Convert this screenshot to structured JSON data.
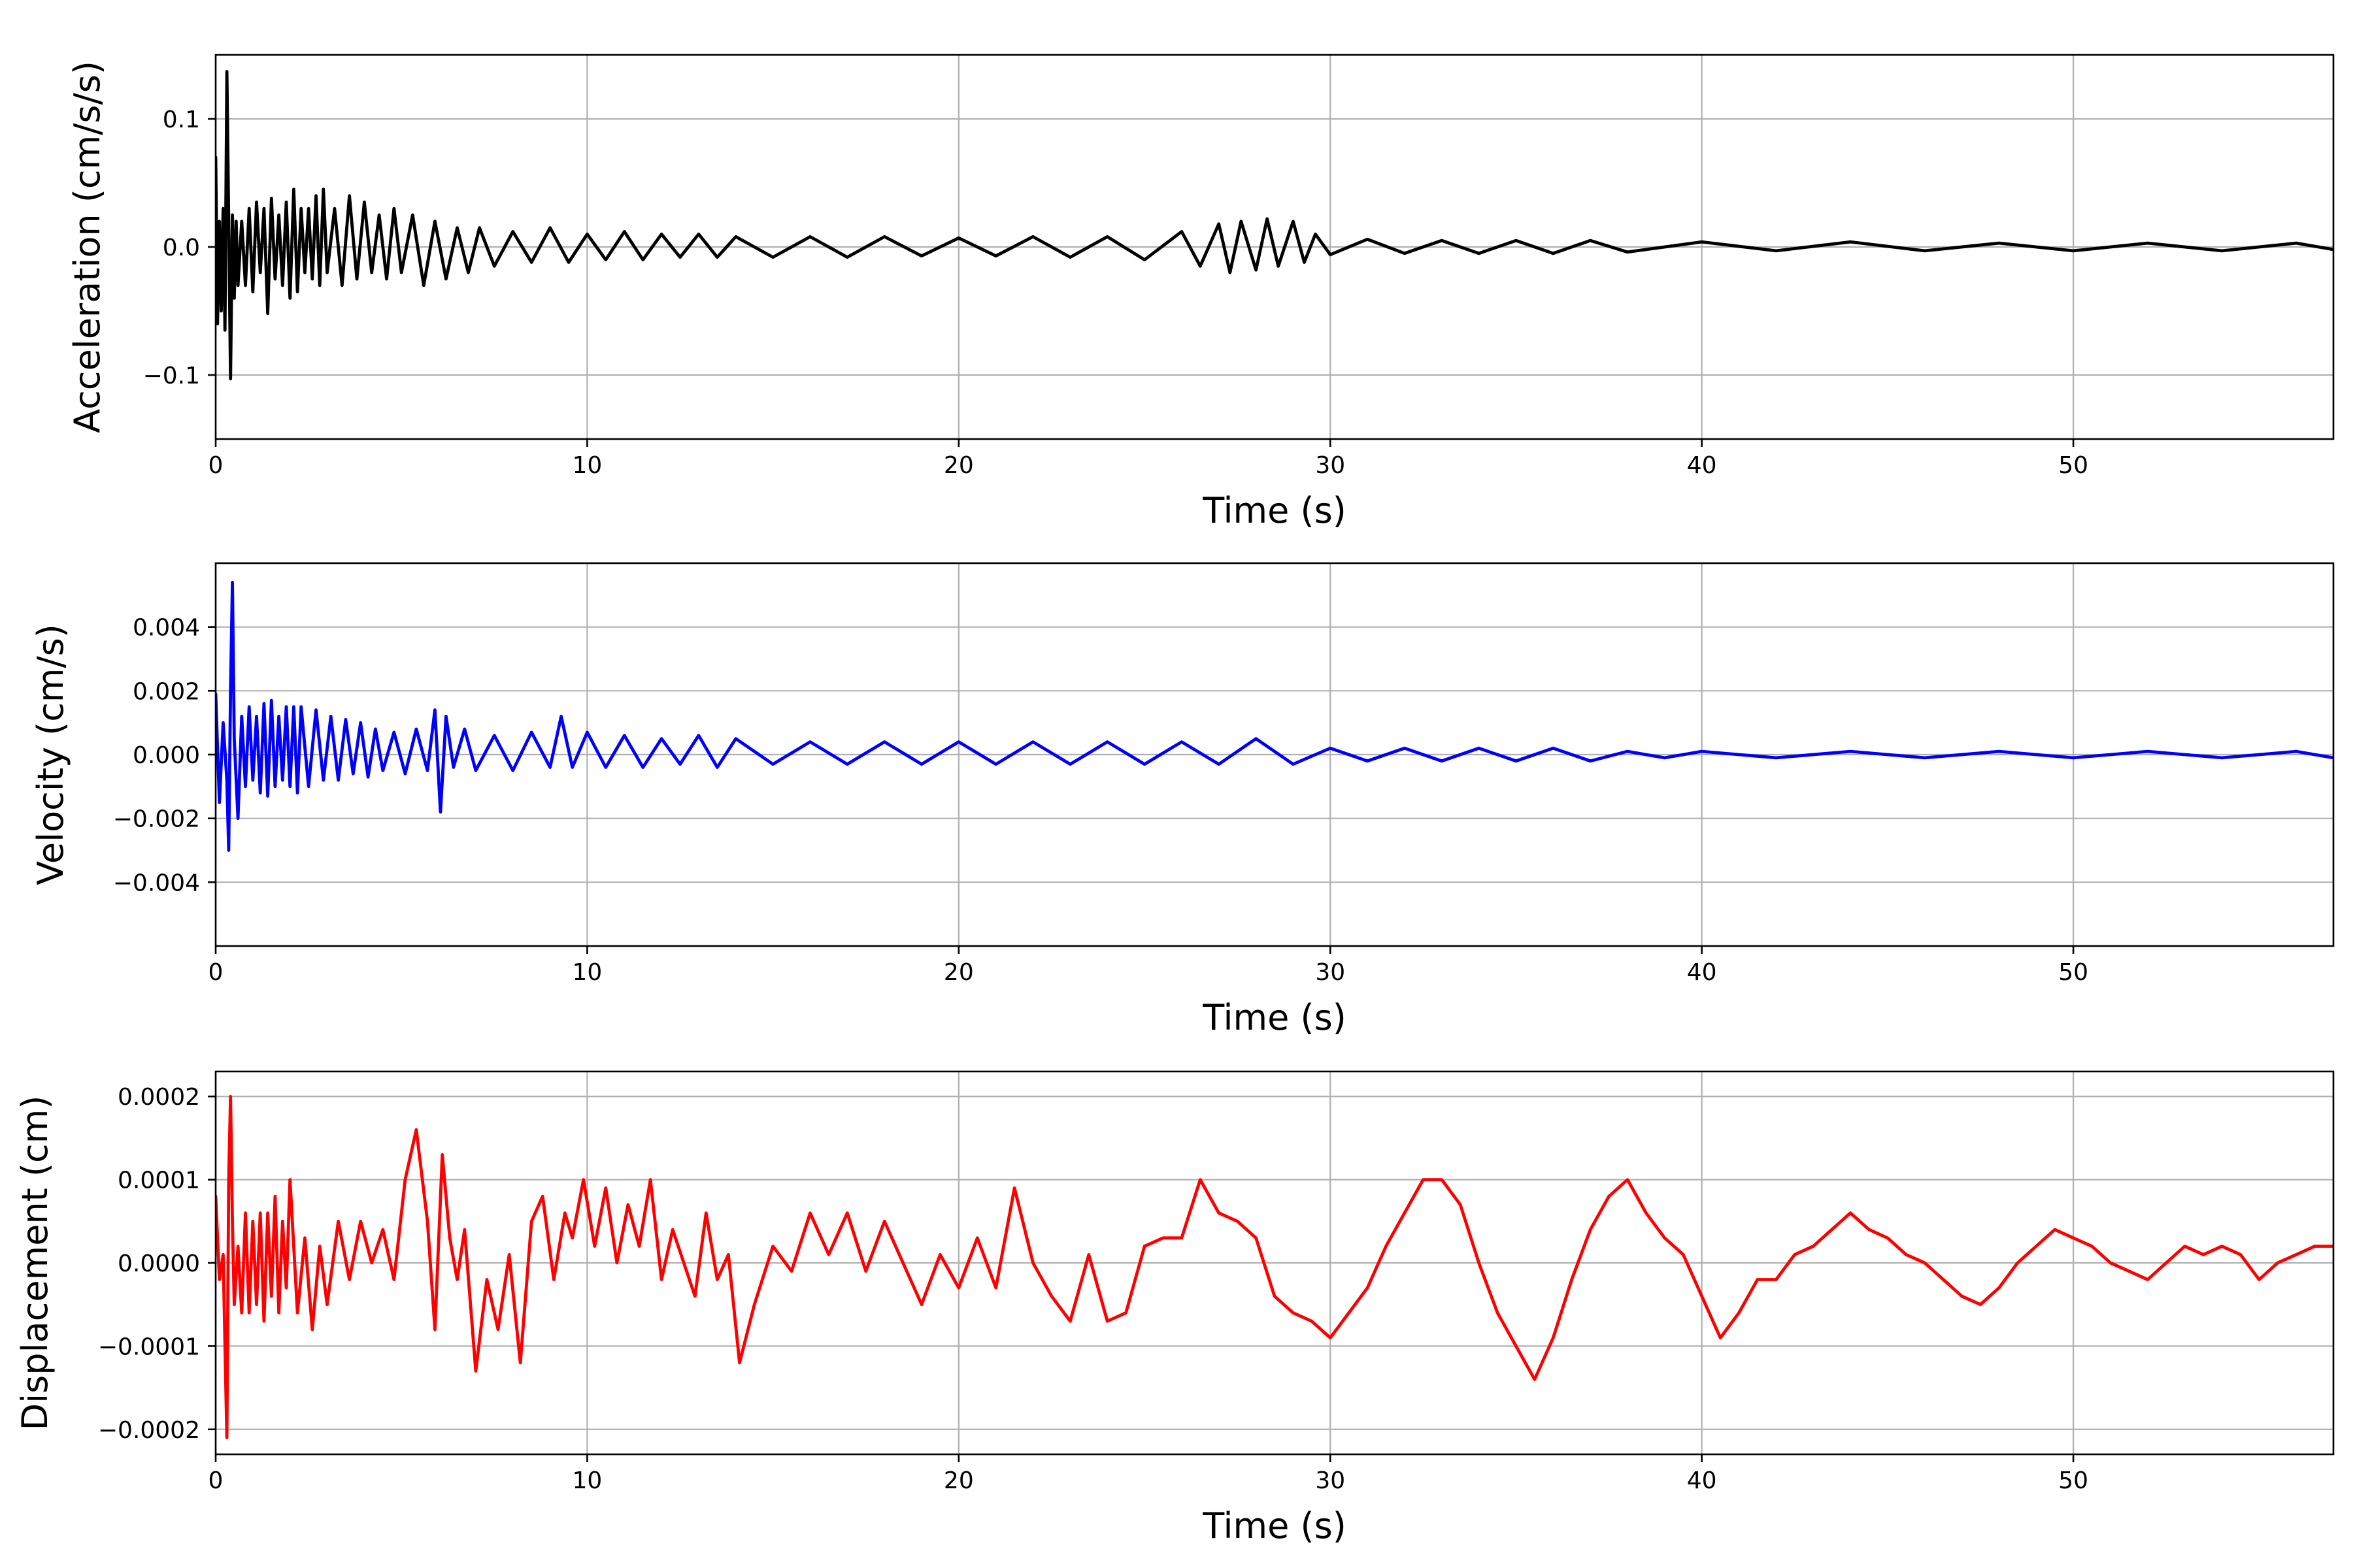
{
  "chart_data": [
    {
      "type": "line",
      "title": "",
      "xlabel": "Time (s)",
      "ylabel": "Acceleration (cm/s/s)",
      "xlim": [
        0,
        57
      ],
      "ylim": [
        -0.15,
        0.15
      ],
      "xticks": [
        0,
        10,
        20,
        30,
        40,
        50
      ],
      "yticks": [
        -0.1,
        0.0,
        0.1
      ],
      "ytick_labels": [
        "−0.1",
        "0.0",
        "0.1"
      ],
      "grid": true,
      "series": [
        {
          "color": "#000000",
          "x": [
            0,
            0.05,
            0.1,
            0.15,
            0.2,
            0.25,
            0.3,
            0.35,
            0.4,
            0.45,
            0.5,
            0.55,
            0.6,
            0.7,
            0.8,
            0.9,
            1.0,
            1.1,
            1.2,
            1.3,
            1.4,
            1.5,
            1.6,
            1.7,
            1.8,
            1.9,
            2.0,
            2.1,
            2.2,
            2.3,
            2.4,
            2.5,
            2.6,
            2.7,
            2.8,
            2.9,
            3.0,
            3.2,
            3.4,
            3.6,
            3.8,
            4.0,
            4.2,
            4.4,
            4.6,
            4.8,
            5.0,
            5.3,
            5.6,
            5.9,
            6.2,
            6.5,
            6.8,
            7.1,
            7.5,
            8.0,
            8.5,
            9.0,
            9.5,
            10,
            10.5,
            11,
            11.5,
            12,
            12.5,
            13,
            13.5,
            14,
            15,
            16,
            17,
            18,
            19,
            20,
            21,
            22,
            23,
            24,
            25,
            26,
            26.5,
            27,
            27.3,
            27.6,
            28,
            28.3,
            28.6,
            29,
            29.3,
            29.6,
            30,
            31,
            32,
            33,
            34,
            35,
            36,
            37,
            38,
            40,
            42,
            44,
            46,
            48,
            50,
            52,
            54,
            56,
            57
          ],
          "y": [
            0.07,
            -0.06,
            0.02,
            -0.05,
            0.03,
            -0.065,
            0.137,
            0.02,
            -0.103,
            0.025,
            -0.04,
            0.02,
            -0.03,
            0.02,
            -0.03,
            0.03,
            -0.035,
            0.035,
            -0.02,
            0.03,
            -0.052,
            0.038,
            -0.025,
            0.025,
            -0.03,
            0.035,
            -0.04,
            0.045,
            -0.035,
            0.03,
            -0.02,
            0.03,
            -0.025,
            0.04,
            -0.03,
            0.045,
            -0.02,
            0.03,
            -0.03,
            0.04,
            -0.025,
            0.035,
            -0.02,
            0.025,
            -0.025,
            0.03,
            -0.02,
            0.025,
            -0.03,
            0.02,
            -0.025,
            0.015,
            -0.02,
            0.015,
            -0.015,
            0.012,
            -0.012,
            0.015,
            -0.012,
            0.01,
            -0.01,
            0.012,
            -0.01,
            0.01,
            -0.008,
            0.01,
            -0.008,
            0.008,
            -0.008,
            0.008,
            -0.008,
            0.008,
            -0.007,
            0.007,
            -0.007,
            0.008,
            -0.008,
            0.008,
            -0.01,
            0.012,
            -0.015,
            0.018,
            -0.02,
            0.02,
            -0.018,
            0.022,
            -0.015,
            0.02,
            -0.012,
            0.01,
            -0.006,
            0.006,
            -0.005,
            0.005,
            -0.005,
            0.005,
            -0.005,
            0.005,
            -0.004,
            0.004,
            -0.003,
            0.004,
            -0.003,
            0.003,
            -0.003,
            0.003,
            -0.003,
            0.003,
            -0.002
          ]
        }
      ]
    },
    {
      "type": "line",
      "title": "",
      "xlabel": "Time (s)",
      "ylabel": "Velocity (cm/s)",
      "xlim": [
        0,
        57
      ],
      "ylim": [
        -0.006,
        0.006
      ],
      "xticks": [
        0,
        10,
        20,
        30,
        40,
        50
      ],
      "yticks": [
        -0.004,
        -0.002,
        0.0,
        0.002,
        0.004
      ],
      "ytick_labels": [
        "−0.004",
        "−0.002",
        "0.000",
        "0.002",
        "0.004"
      ],
      "grid": true,
      "series": [
        {
          "color": "#0000ff",
          "x": [
            0,
            0.1,
            0.2,
            0.3,
            0.35,
            0.4,
            0.45,
            0.5,
            0.6,
            0.7,
            0.8,
            0.9,
            1.0,
            1.1,
            1.2,
            1.3,
            1.4,
            1.5,
            1.6,
            1.7,
            1.8,
            1.9,
            2.0,
            2.1,
            2.2,
            2.3,
            2.5,
            2.7,
            2.9,
            3.1,
            3.3,
            3.5,
            3.7,
            3.9,
            4.1,
            4.3,
            4.5,
            4.8,
            5.1,
            5.4,
            5.7,
            5.9,
            6.05,
            6.2,
            6.4,
            6.7,
            7.0,
            7.5,
            8.0,
            8.5,
            9.0,
            9.3,
            9.6,
            10,
            10.5,
            11,
            11.5,
            12,
            12.5,
            13,
            13.5,
            14,
            15,
            16,
            17,
            18,
            19,
            20,
            21,
            22,
            23,
            24,
            25,
            26,
            27,
            28,
            29,
            30,
            31,
            32,
            33,
            34,
            35,
            36,
            37,
            38,
            39,
            40,
            42,
            44,
            46,
            48,
            50,
            52,
            54,
            56,
            57
          ],
          "y": [
            0.0019,
            -0.0015,
            0.001,
            -0.0008,
            -0.003,
            0.002,
            0.0054,
            0.0005,
            -0.002,
            0.0012,
            -0.001,
            0.0015,
            -0.0008,
            0.0012,
            -0.0012,
            0.0016,
            -0.0013,
            0.0017,
            -0.001,
            0.0012,
            -0.0008,
            0.0015,
            -0.001,
            0.0015,
            -0.0012,
            0.0015,
            -0.001,
            0.0014,
            -0.0008,
            0.0012,
            -0.0008,
            0.0011,
            -0.0006,
            0.001,
            -0.0007,
            0.0008,
            -0.0005,
            0.0007,
            -0.0006,
            0.0008,
            -0.0005,
            0.0014,
            -0.0018,
            0.0012,
            -0.0004,
            0.0008,
            -0.0005,
            0.0006,
            -0.0005,
            0.0007,
            -0.0004,
            0.0012,
            -0.0004,
            0.0007,
            -0.0004,
            0.0006,
            -0.0004,
            0.0005,
            -0.0003,
            0.0006,
            -0.0004,
            0.0005,
            -0.0003,
            0.0004,
            -0.0003,
            0.0004,
            -0.0003,
            0.0004,
            -0.0003,
            0.0004,
            -0.0003,
            0.0004,
            -0.0003,
            0.0004,
            -0.0003,
            0.0005,
            -0.0003,
            0.0002,
            -0.0002,
            0.0002,
            -0.0002,
            0.0002,
            -0.0002,
            0.0002,
            -0.0002,
            0.0001,
            -0.0001,
            0.0001,
            -0.0001,
            0.0001,
            -0.0001,
            0.0001,
            -0.0001,
            0.0001,
            -0.0001,
            0.0001,
            -0.0001
          ]
        }
      ]
    },
    {
      "type": "line",
      "title": "",
      "xlabel": "Time (s)",
      "ylabel": "Displacement (cm)",
      "xlim": [
        0,
        57
      ],
      "ylim": [
        -0.00023,
        0.00023
      ],
      "xticks": [
        0,
        10,
        20,
        30,
        40,
        50
      ],
      "yticks": [
        -0.0002,
        -0.0001,
        0.0,
        0.0001,
        0.0002
      ],
      "ytick_labels": [
        "−0.0002",
        "−0.0001",
        "0.0000",
        "0.0001",
        "0.0002"
      ],
      "grid": true,
      "series": [
        {
          "color": "#ff0000",
          "x": [
            0,
            0.1,
            0.2,
            0.3,
            0.35,
            0.4,
            0.45,
            0.5,
            0.6,
            0.7,
            0.8,
            0.9,
            1.0,
            1.1,
            1.2,
            1.3,
            1.4,
            1.5,
            1.6,
            1.7,
            1.8,
            1.9,
            2.0,
            2.2,
            2.4,
            2.6,
            2.8,
            3.0,
            3.3,
            3.6,
            3.9,
            4.2,
            4.5,
            4.8,
            5.1,
            5.4,
            5.7,
            5.9,
            6.1,
            6.3,
            6.5,
            6.7,
            7.0,
            7.3,
            7.6,
            7.9,
            8.2,
            8.5,
            8.8,
            9.1,
            9.4,
            9.6,
            9.9,
            10.2,
            10.5,
            10.8,
            11.1,
            11.4,
            11.7,
            12.0,
            12.3,
            12.6,
            12.9,
            13.2,
            13.5,
            13.8,
            14.1,
            14.5,
            15.0,
            15.5,
            16,
            16.5,
            17,
            17.5,
            18,
            18.5,
            19,
            19.5,
            20,
            20.5,
            21,
            21.5,
            22,
            22.5,
            23,
            23.5,
            24,
            24.5,
            25,
            25.5,
            26,
            26.5,
            27,
            27.5,
            28,
            28.5,
            29,
            29.5,
            30,
            30.5,
            31,
            31.5,
            32,
            32.5,
            33,
            33.5,
            34,
            34.5,
            35,
            35.5,
            36,
            36.5,
            37,
            37.5,
            38,
            38.5,
            39,
            39.5,
            40,
            40.5,
            41,
            41.5,
            42,
            42.5,
            43,
            43.5,
            44,
            44.5,
            45,
            45.5,
            46,
            46.5,
            47,
            47.5,
            48,
            48.5,
            49,
            49.5,
            50,
            50.5,
            51,
            51.5,
            52,
            52.5,
            53,
            53.5,
            54,
            54.5,
            55,
            55.5,
            56,
            56.5,
            57
          ],
          "y": [
            8e-05,
            -2e-05,
            1e-05,
            -0.00021,
            0.0001,
            0.0002,
            5e-05,
            -5e-05,
            2e-05,
            -6e-05,
            6e-05,
            -6e-05,
            5e-05,
            -5e-05,
            6e-05,
            -7e-05,
            6e-05,
            -4e-05,
            8e-05,
            -6e-05,
            5e-05,
            -3e-05,
            0.0001,
            -6e-05,
            3e-05,
            -8e-05,
            2e-05,
            -5e-05,
            5e-05,
            -2e-05,
            5e-05,
            0.0,
            4e-05,
            -2e-05,
            0.0001,
            0.00016,
            5e-05,
            -8e-05,
            0.00013,
            3e-05,
            -2e-05,
            4e-05,
            -0.00013,
            -2e-05,
            -8e-05,
            1e-05,
            -0.00012,
            5e-05,
            8e-05,
            -2e-05,
            6e-05,
            3e-05,
            0.0001,
            2e-05,
            9e-05,
            0.0,
            7e-05,
            2e-05,
            0.0001,
            -2e-05,
            4e-05,
            0.0,
            -4e-05,
            6e-05,
            -2e-05,
            1e-05,
            -0.00012,
            -5e-05,
            2e-05,
            -1e-05,
            6e-05,
            1e-05,
            6e-05,
            -1e-05,
            5e-05,
            0.0,
            -5e-05,
            1e-05,
            -3e-05,
            3e-05,
            -3e-05,
            9e-05,
            0.0,
            -4e-05,
            -7e-05,
            1e-05,
            -7e-05,
            -6e-05,
            2e-05,
            3e-05,
            3e-05,
            0.0001,
            6e-05,
            5e-05,
            3e-05,
            -4e-05,
            -6e-05,
            -7e-05,
            -9e-05,
            -6e-05,
            -3e-05,
            2e-05,
            6e-05,
            0.0001,
            0.0001,
            7e-05,
            0.0,
            -6e-05,
            -0.0001,
            -0.00014,
            -9e-05,
            -2e-05,
            4e-05,
            8e-05,
            0.0001,
            6e-05,
            3e-05,
            1e-05,
            -4e-05,
            -9e-05,
            -6e-05,
            -2e-05,
            -2e-05,
            1e-05,
            2e-05,
            4e-05,
            6e-05,
            4e-05,
            3e-05,
            1e-05,
            0.0,
            -2e-05,
            -4e-05,
            -5e-05,
            -3e-05,
            0.0,
            2e-05,
            4e-05,
            3e-05,
            2e-05,
            0.0,
            -1e-05,
            -2e-05,
            0.0,
            2e-05,
            1e-05,
            2e-05,
            1e-05,
            -2e-05,
            0.0,
            1e-05,
            2e-05,
            2e-05
          ]
        }
      ]
    }
  ]
}
